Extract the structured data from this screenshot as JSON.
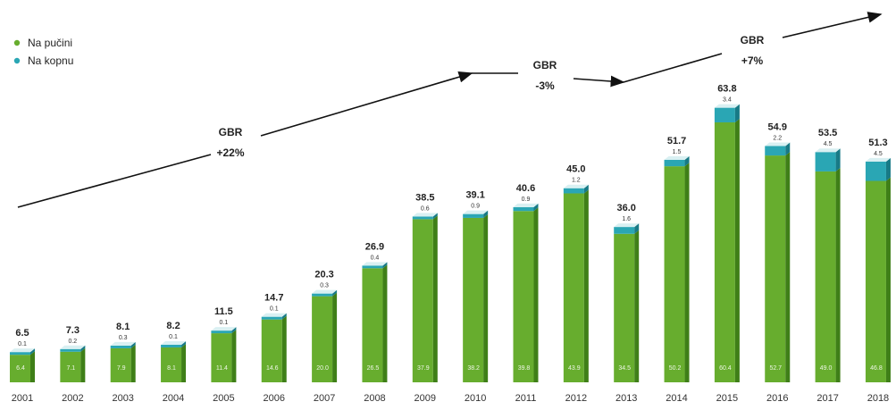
{
  "legend": {
    "offshore": "Na pučini",
    "onshore": "Na kopnu"
  },
  "colors": {
    "offshore": "#67ad2e",
    "offshore_dark": "#3f7f18",
    "offshore_top": "#9fd25a",
    "onshore": "#2aa6b4",
    "onshore_dark": "#187a86",
    "onshore_top": "#d9f0f2",
    "arrow": "#111111"
  },
  "annotations": [
    {
      "title": "GBR",
      "value": "+22%"
    },
    {
      "title": "GBR",
      "value": "-3%"
    },
    {
      "title": "GBR",
      "value": "+7%"
    }
  ],
  "chart_data": {
    "type": "bar",
    "stacked": true,
    "categories": [
      "2001",
      "2002",
      "2003",
      "2004",
      "2005",
      "2006",
      "2007",
      "2008",
      "2009",
      "2010",
      "2011",
      "2012",
      "2013",
      "2014",
      "2015",
      "2016",
      "2017",
      "2018"
    ],
    "totals": [
      "6.5",
      "7.3",
      "8.1",
      "8.2",
      "11.5",
      "14.7",
      "20.3",
      "26.9",
      "38.5",
      "39.1",
      "40.6",
      "45.0",
      "36.0",
      "51.7",
      "63.8",
      "54.9",
      "53.5",
      "51.3"
    ],
    "series": [
      {
        "name": "Na pučini",
        "values": [
          6.4,
          7.1,
          7.9,
          8.1,
          11.4,
          14.6,
          20.0,
          26.5,
          37.9,
          38.2,
          39.8,
          43.9,
          34.5,
          50.2,
          60.4,
          52.7,
          49.0,
          46.8
        ]
      },
      {
        "name": "Na kopnu",
        "values": [
          0.1,
          0.2,
          0.3,
          0.1,
          0.1,
          0.1,
          0.3,
          0.4,
          0.6,
          0.9,
          0.9,
          1.2,
          1.6,
          1.5,
          3.4,
          2.2,
          4.5,
          4.5
        ]
      }
    ],
    "value_labels": {
      "offshore": [
        "6.4",
        "7.1",
        "7.9",
        "8.1",
        "11.4",
        "14.6",
        "20.0",
        "26.5",
        "37.9",
        "38.2",
        "39.8",
        "43.9",
        "34.5",
        "50.2",
        "60.4",
        "52.7",
        "49.0",
        "46.8"
      ],
      "onshore": [
        "0.1",
        "0.2",
        "0.3",
        "0.1",
        "0.1",
        "0.1",
        "0.3",
        "0.4",
        "0.6",
        "0.9",
        "0.9",
        "1.2",
        "1.6",
        "1.5",
        "3.4",
        "2.2",
        "4.5",
        "4.5"
      ]
    },
    "ylim": [
      0,
      66
    ],
    "grid": false,
    "legend_position": "top-left"
  }
}
